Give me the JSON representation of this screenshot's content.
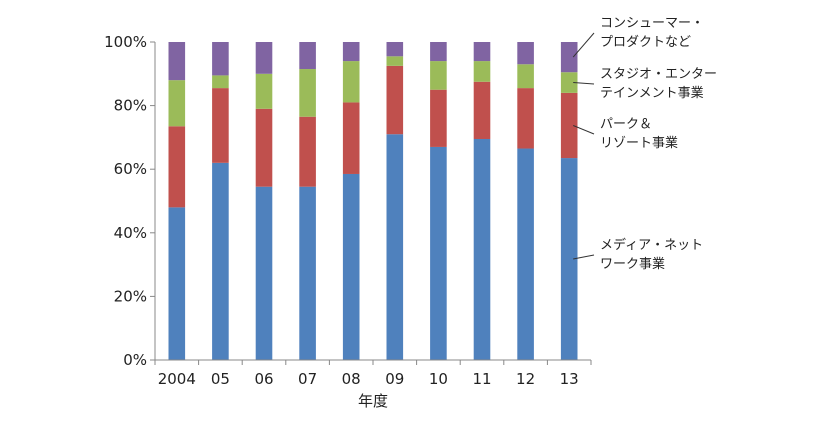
{
  "chart_data": {
    "type": "bar",
    "stacked": true,
    "percent_stacked": true,
    "title": "",
    "xlabel": "年度",
    "ylabel": "",
    "ylim": [
      0,
      100
    ],
    "y_ticks": [
      "0%",
      "20%",
      "40%",
      "60%",
      "80%",
      "100%"
    ],
    "grid": false,
    "legend_position": "right",
    "categories": [
      "2004",
      "05",
      "06",
      "07",
      "08",
      "09",
      "10",
      "11",
      "12",
      "13"
    ],
    "series": [
      {
        "name": "メディア・ネットワーク事業",
        "legend_lines": [
          "メディア・ネット",
          "ワーク事業"
        ],
        "color": "#4F81BD",
        "values": [
          48,
          62,
          54.5,
          54.5,
          58.5,
          71,
          67,
          69.5,
          66.5,
          63.5
        ]
      },
      {
        "name": "パーク＆リゾート事業",
        "legend_lines": [
          "パーク＆",
          "リゾート事業"
        ],
        "color": "#C0504D",
        "values": [
          25.5,
          23.5,
          24.5,
          22,
          22.5,
          21.5,
          18,
          18,
          19,
          20.5
        ]
      },
      {
        "name": "スタジオ・エンターテインメント事業",
        "legend_lines": [
          "スタジオ・エンター",
          "テインメント事業"
        ],
        "color": "#9BBB59",
        "values": [
          14.5,
          4,
          11,
          15,
          13,
          3,
          9,
          6.5,
          7.5,
          6.5
        ]
      },
      {
        "name": "コンシューマー・プロダクトなど",
        "legend_lines": [
          "コンシューマー・",
          "プロダクトなど"
        ],
        "color": "#8064A2",
        "values": [
          12,
          10.5,
          10,
          8.5,
          6,
          4.5,
          6,
          6,
          7,
          9.5
        ]
      }
    ]
  }
}
